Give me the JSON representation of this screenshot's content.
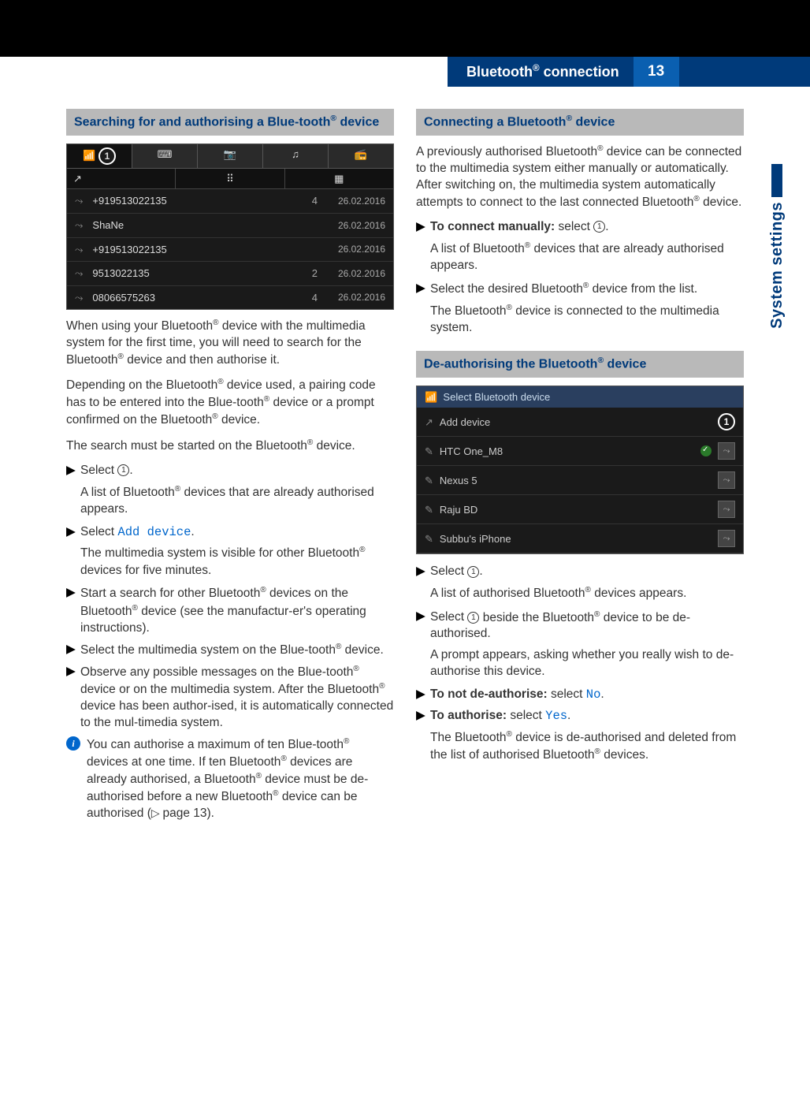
{
  "header": {
    "title_pre": "Bluetooth",
    "title_post": " connection",
    "page_number": "13"
  },
  "side_tab": "System settings",
  "left": {
    "section_title_pre": "Searching for and authorising a Blue-tooth",
    "section_title_post": " device",
    "screenshot": {
      "marker": "1",
      "rows": [
        {
          "name": "+919513022135",
          "count": "4",
          "date": "26.02.2016"
        },
        {
          "name": "ShaNe",
          "count": "",
          "date": "26.02.2016"
        },
        {
          "name": "+919513022135",
          "count": "",
          "date": "26.02.2016"
        },
        {
          "name": "9513022135",
          "count": "2",
          "date": "26.02.2016"
        },
        {
          "name": "08066575263",
          "count": "4",
          "date": "26.02.2016"
        }
      ]
    },
    "p1": "When using your Bluetooth® device with the multimedia system for the first time, you will need to search for the Bluetooth® device and then authorise it.",
    "p2": "Depending on the Bluetooth® device used, a pairing code has to be entered into the Blue-tooth® device or a prompt confirmed on the Bluetooth® device.",
    "p3": "The search must be started on the Bluetooth® device.",
    "s1a": "Select ",
    "s1b": ".",
    "s1c": "A list of Bluetooth® devices that are already authorised appears.",
    "s2a": "Select ",
    "s2link": "Add device",
    "s2b": ".",
    "s2c": "The multimedia system is visible for other Bluetooth® devices for five minutes.",
    "s3": "Start a search for other Bluetooth® devices on the Bluetooth® device (see the manufactur-er's operating instructions).",
    "s4": "Select the multimedia system on the Blue-tooth® device.",
    "s5": "Observe any possible messages on the Blue-tooth® device or on the multimedia system. After the Bluetooth® device has been author-ised, it is automatically connected to the mul-timedia system.",
    "info": "You can authorise a maximum of ten Blue-tooth® devices at one time. If ten Bluetooth® devices are already authorised, a Bluetooth® device must be de-authorised before a new Bluetooth® device can be authorised",
    "info_page": "page 13)."
  },
  "right": {
    "sec1_title_pre": "Connecting a Bluetooth",
    "sec1_title_post": " device",
    "p1": "A previously authorised Bluetooth® device can be connected to the multimedia system either manually or automatically. After switching on, the multimedia system automatically attempts to connect to the last connected Bluetooth® device.",
    "s1a": "To connect manually:",
    "s1b": " select ",
    "s1c": ".",
    "s1d": "A list of Bluetooth® devices that are already authorised appears.",
    "s2a": "Select the desired Bluetooth® device from the list.",
    "s2b": "The Bluetooth® device is connected to the multimedia system.",
    "sec2_title_pre": "De-authorising the Bluetooth",
    "sec2_title_post": " device",
    "screenshot": {
      "head": "Select Bluetooth device",
      "marker": "1",
      "rows": [
        {
          "name": "Add device",
          "first": true
        },
        {
          "name": "HTC One_M8",
          "check": true
        },
        {
          "name": "Nexus 5"
        },
        {
          "name": "Raju BD"
        },
        {
          "name": "Subbu's iPhone"
        }
      ]
    },
    "s3a": "Select ",
    "s3b": ".",
    "s3c": "A list of authorised Bluetooth® devices appears.",
    "s4a": "Select ",
    "s4b": " beside the Bluetooth® device to be de-authorised.",
    "s4c": "A prompt appears, asking whether you really wish to de-authorise this device.",
    "s5a": "To not de-authorise:",
    "s5b": " select ",
    "s5no": "No",
    "s5c": ".",
    "s6a": "To authorise:",
    "s6b": " select ",
    "s6yes": "Yes",
    "s6c": ".",
    "s6d": "The Bluetooth® device is de-authorised and deleted from the list of authorised Bluetooth® devices."
  }
}
